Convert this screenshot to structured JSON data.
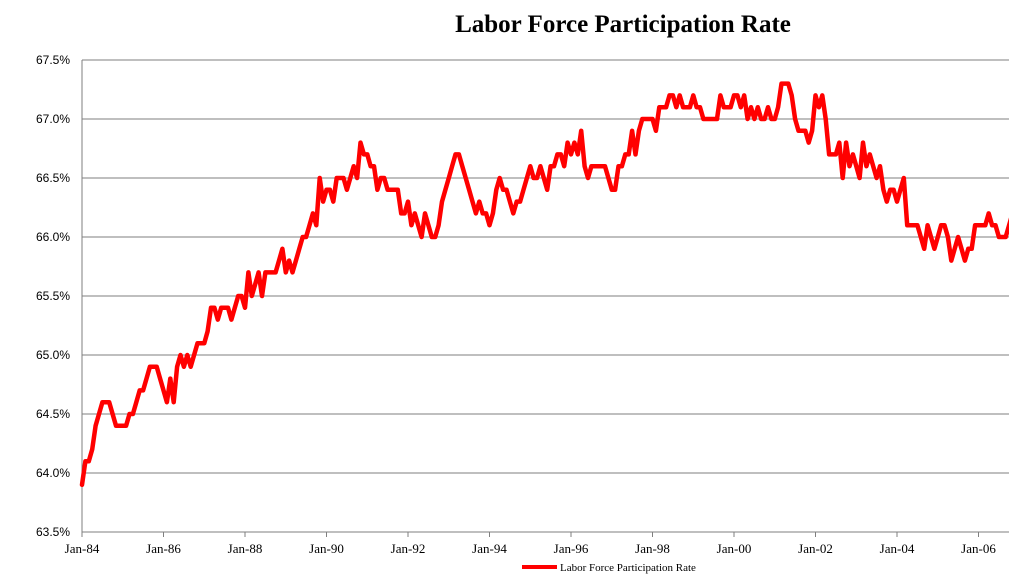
{
  "chart_data": {
    "type": "line",
    "title": "Labor Force Participation Rate",
    "xlabel": "",
    "ylabel": "",
    "ylim": [
      63.5,
      67.5
    ],
    "yticks": [
      "67.5%",
      "67.0%",
      "66.5%",
      "66.0%",
      "65.5%",
      "65.0%",
      "64.5%",
      "64.0%",
      "63.5%"
    ],
    "xticks": [
      "Jan-84",
      "Jan-86",
      "Jan-88",
      "Jan-90",
      "Jan-92",
      "Jan-94",
      "Jan-96",
      "Jan-98",
      "Jan-00",
      "Jan-02",
      "Jan-04",
      "Jan-06"
    ],
    "grid": true,
    "legend_position": "bottom",
    "series": [
      {
        "name": "Labor Force Participation Rate",
        "color": "#ff0000",
        "points": [
          [
            "1984-01",
            63.9
          ],
          [
            "1984-02",
            64.1
          ],
          [
            "1984-03",
            64.1
          ],
          [
            "1984-04",
            64.2
          ],
          [
            "1984-05",
            64.4
          ],
          [
            "1984-06",
            64.5
          ],
          [
            "1984-07",
            64.6
          ],
          [
            "1984-08",
            64.6
          ],
          [
            "1984-09",
            64.6
          ],
          [
            "1984-10",
            64.5
          ],
          [
            "1984-11",
            64.4
          ],
          [
            "1984-12",
            64.4
          ],
          [
            "1985-01",
            64.4
          ],
          [
            "1985-02",
            64.4
          ],
          [
            "1985-03",
            64.5
          ],
          [
            "1985-04",
            64.5
          ],
          [
            "1985-05",
            64.6
          ],
          [
            "1985-06",
            64.7
          ],
          [
            "1985-07",
            64.7
          ],
          [
            "1985-08",
            64.8
          ],
          [
            "1985-09",
            64.9
          ],
          [
            "1985-10",
            64.9
          ],
          [
            "1985-11",
            64.9
          ],
          [
            "1985-12",
            64.8
          ],
          [
            "1986-01",
            64.7
          ],
          [
            "1986-02",
            64.6
          ],
          [
            "1986-03",
            64.8
          ],
          [
            "1986-04",
            64.6
          ],
          [
            "1986-05",
            64.9
          ],
          [
            "1986-06",
            65.0
          ],
          [
            "1986-07",
            64.9
          ],
          [
            "1986-08",
            65.0
          ],
          [
            "1986-09",
            64.9
          ],
          [
            "1986-10",
            65.0
          ],
          [
            "1986-11",
            65.1
          ],
          [
            "1986-12",
            65.1
          ],
          [
            "1987-01",
            65.1
          ],
          [
            "1987-02",
            65.2
          ],
          [
            "1987-03",
            65.4
          ],
          [
            "1987-04",
            65.4
          ],
          [
            "1987-05",
            65.3
          ],
          [
            "1987-06",
            65.4
          ],
          [
            "1987-07",
            65.4
          ],
          [
            "1987-08",
            65.4
          ],
          [
            "1987-09",
            65.3
          ],
          [
            "1987-10",
            65.4
          ],
          [
            "1987-11",
            65.5
          ],
          [
            "1987-12",
            65.5
          ],
          [
            "1988-01",
            65.4
          ],
          [
            "1988-02",
            65.7
          ],
          [
            "1988-03",
            65.5
          ],
          [
            "1988-04",
            65.6
          ],
          [
            "1988-05",
            65.7
          ],
          [
            "1988-06",
            65.5
          ],
          [
            "1988-07",
            65.7
          ],
          [
            "1988-08",
            65.7
          ],
          [
            "1988-09",
            65.7
          ],
          [
            "1988-10",
            65.7
          ],
          [
            "1988-11",
            65.8
          ],
          [
            "1988-12",
            65.9
          ],
          [
            "1989-01",
            65.7
          ],
          [
            "1989-02",
            65.8
          ],
          [
            "1989-03",
            65.7
          ],
          [
            "1989-04",
            65.8
          ],
          [
            "1989-05",
            65.9
          ],
          [
            "1989-06",
            66.0
          ],
          [
            "1989-07",
            66.0
          ],
          [
            "1989-08",
            66.1
          ],
          [
            "1989-09",
            66.2
          ],
          [
            "1989-10",
            66.1
          ],
          [
            "1989-11",
            66.5
          ],
          [
            "1989-12",
            66.3
          ],
          [
            "1990-01",
            66.4
          ],
          [
            "1990-02",
            66.4
          ],
          [
            "1990-03",
            66.3
          ],
          [
            "1990-04",
            66.5
          ],
          [
            "1990-05",
            66.5
          ],
          [
            "1990-06",
            66.5
          ],
          [
            "1990-07",
            66.4
          ],
          [
            "1990-08",
            66.5
          ],
          [
            "1990-09",
            66.6
          ],
          [
            "1990-10",
            66.5
          ],
          [
            "1990-11",
            66.8
          ],
          [
            "1990-12",
            66.7
          ],
          [
            "1991-01",
            66.7
          ],
          [
            "1991-02",
            66.6
          ],
          [
            "1991-03",
            66.6
          ],
          [
            "1991-04",
            66.4
          ],
          [
            "1991-05",
            66.5
          ],
          [
            "1991-06",
            66.5
          ],
          [
            "1991-07",
            66.4
          ],
          [
            "1991-08",
            66.4
          ],
          [
            "1991-09",
            66.4
          ],
          [
            "1991-10",
            66.4
          ],
          [
            "1991-11",
            66.2
          ],
          [
            "1991-12",
            66.2
          ],
          [
            "1992-01",
            66.3
          ],
          [
            "1992-02",
            66.1
          ],
          [
            "1992-03",
            66.2
          ],
          [
            "1992-04",
            66.1
          ],
          [
            "1992-05",
            66.0
          ],
          [
            "1992-06",
            66.2
          ],
          [
            "1992-07",
            66.1
          ],
          [
            "1992-08",
            66.0
          ],
          [
            "1992-09",
            66.0
          ],
          [
            "1992-10",
            66.1
          ],
          [
            "1992-11",
            66.3
          ],
          [
            "1992-12",
            66.4
          ],
          [
            "1993-01",
            66.5
          ],
          [
            "1993-02",
            66.6
          ],
          [
            "1993-03",
            66.7
          ],
          [
            "1993-04",
            66.7
          ],
          [
            "1993-05",
            66.6
          ],
          [
            "1993-06",
            66.5
          ],
          [
            "1993-07",
            66.4
          ],
          [
            "1993-08",
            66.3
          ],
          [
            "1993-09",
            66.2
          ],
          [
            "1993-10",
            66.3
          ],
          [
            "1993-11",
            66.2
          ],
          [
            "1993-12",
            66.2
          ],
          [
            "1994-01",
            66.1
          ],
          [
            "1994-02",
            66.2
          ],
          [
            "1994-03",
            66.4
          ],
          [
            "1994-04",
            66.5
          ],
          [
            "1994-05",
            66.4
          ],
          [
            "1994-06",
            66.4
          ],
          [
            "1994-07",
            66.3
          ],
          [
            "1994-08",
            66.2
          ],
          [
            "1994-09",
            66.3
          ],
          [
            "1994-10",
            66.3
          ],
          [
            "1994-11",
            66.4
          ],
          [
            "1994-12",
            66.5
          ],
          [
            "1995-01",
            66.6
          ],
          [
            "1995-02",
            66.5
          ],
          [
            "1995-03",
            66.5
          ],
          [
            "1995-04",
            66.6
          ],
          [
            "1995-05",
            66.5
          ],
          [
            "1995-06",
            66.4
          ],
          [
            "1995-07",
            66.6
          ],
          [
            "1995-08",
            66.6
          ],
          [
            "1995-09",
            66.7
          ],
          [
            "1995-10",
            66.7
          ],
          [
            "1995-11",
            66.6
          ],
          [
            "1995-12",
            66.8
          ],
          [
            "1996-01",
            66.7
          ],
          [
            "1996-02",
            66.8
          ],
          [
            "1996-03",
            66.7
          ],
          [
            "1996-04",
            66.9
          ],
          [
            "1996-05",
            66.6
          ],
          [
            "1996-06",
            66.5
          ],
          [
            "1996-07",
            66.6
          ],
          [
            "1996-08",
            66.6
          ],
          [
            "1996-09",
            66.6
          ],
          [
            "1996-10",
            66.6
          ],
          [
            "1996-11",
            66.6
          ],
          [
            "1996-12",
            66.5
          ],
          [
            "1997-01",
            66.4
          ],
          [
            "1997-02",
            66.4
          ],
          [
            "1997-03",
            66.6
          ],
          [
            "1997-04",
            66.6
          ],
          [
            "1997-05",
            66.7
          ],
          [
            "1997-06",
            66.7
          ],
          [
            "1997-07",
            66.9
          ],
          [
            "1997-08",
            66.7
          ],
          [
            "1997-09",
            66.9
          ],
          [
            "1997-10",
            67.0
          ],
          [
            "1997-11",
            67.0
          ],
          [
            "1997-12",
            67.0
          ],
          [
            "1998-01",
            67.0
          ],
          [
            "1998-02",
            66.9
          ],
          [
            "1998-03",
            67.1
          ],
          [
            "1998-04",
            67.1
          ],
          [
            "1998-05",
            67.1
          ],
          [
            "1998-06",
            67.2
          ],
          [
            "1998-07",
            67.2
          ],
          [
            "1998-08",
            67.1
          ],
          [
            "1998-09",
            67.2
          ],
          [
            "1998-10",
            67.1
          ],
          [
            "1998-11",
            67.1
          ],
          [
            "1998-12",
            67.1
          ],
          [
            "1999-01",
            67.2
          ],
          [
            "1999-02",
            67.1
          ],
          [
            "1999-03",
            67.1
          ],
          [
            "1999-04",
            67.0
          ],
          [
            "1999-05",
            67.0
          ],
          [
            "1999-06",
            67.0
          ],
          [
            "1999-07",
            67.0
          ],
          [
            "1999-08",
            67.0
          ],
          [
            "1999-09",
            67.2
          ],
          [
            "1999-10",
            67.1
          ],
          [
            "1999-11",
            67.1
          ],
          [
            "1999-12",
            67.1
          ],
          [
            "2000-01",
            67.2
          ],
          [
            "2000-02",
            67.2
          ],
          [
            "2000-03",
            67.1
          ],
          [
            "2000-04",
            67.2
          ],
          [
            "2000-05",
            67.0
          ],
          [
            "2000-06",
            67.1
          ],
          [
            "2000-07",
            67.0
          ],
          [
            "2000-08",
            67.1
          ],
          [
            "2000-09",
            67.0
          ],
          [
            "2000-10",
            67.0
          ],
          [
            "2000-11",
            67.1
          ],
          [
            "2000-12",
            67.0
          ],
          [
            "2001-01",
            67.0
          ],
          [
            "2001-02",
            67.1
          ],
          [
            "2001-03",
            67.3
          ],
          [
            "2001-04",
            67.3
          ],
          [
            "2001-05",
            67.3
          ],
          [
            "2001-06",
            67.2
          ],
          [
            "2001-07",
            67.0
          ],
          [
            "2001-08",
            66.9
          ],
          [
            "2001-09",
            66.9
          ],
          [
            "2001-10",
            66.9
          ],
          [
            "2001-11",
            66.8
          ],
          [
            "2001-12",
            66.9
          ],
          [
            "2002-01",
            67.2
          ],
          [
            "2002-02",
            67.1
          ],
          [
            "2002-03",
            67.2
          ],
          [
            "2002-04",
            67.0
          ],
          [
            "2002-05",
            66.7
          ],
          [
            "2002-06",
            66.7
          ],
          [
            "2002-07",
            66.7
          ],
          [
            "2002-08",
            66.8
          ],
          [
            "2002-09",
            66.5
          ],
          [
            "2002-10",
            66.8
          ],
          [
            "2002-11",
            66.6
          ],
          [
            "2002-12",
            66.7
          ],
          [
            "2003-01",
            66.6
          ],
          [
            "2003-02",
            66.5
          ],
          [
            "2003-03",
            66.8
          ],
          [
            "2003-04",
            66.6
          ],
          [
            "2003-05",
            66.7
          ],
          [
            "2003-06",
            66.6
          ],
          [
            "2003-07",
            66.5
          ],
          [
            "2003-08",
            66.6
          ],
          [
            "2003-09",
            66.4
          ],
          [
            "2003-10",
            66.3
          ],
          [
            "2003-11",
            66.4
          ],
          [
            "2003-12",
            66.4
          ],
          [
            "2004-01",
            66.3
          ],
          [
            "2004-02",
            66.4
          ],
          [
            "2004-03",
            66.5
          ],
          [
            "2004-04",
            66.1
          ],
          [
            "2004-05",
            66.1
          ],
          [
            "2004-06",
            66.1
          ],
          [
            "2004-07",
            66.1
          ],
          [
            "2004-08",
            66.0
          ],
          [
            "2004-09",
            65.9
          ],
          [
            "2004-10",
            66.1
          ],
          [
            "2004-11",
            66.0
          ],
          [
            "2004-12",
            65.9
          ],
          [
            "2005-01",
            66.0
          ],
          [
            "2005-02",
            66.1
          ],
          [
            "2005-03",
            66.1
          ],
          [
            "2005-04",
            66.0
          ],
          [
            "2005-05",
            65.8
          ],
          [
            "2005-06",
            65.9
          ],
          [
            "2005-07",
            66.0
          ],
          [
            "2005-08",
            65.9
          ],
          [
            "2005-09",
            65.8
          ],
          [
            "2005-10",
            65.9
          ],
          [
            "2005-11",
            65.9
          ],
          [
            "2005-12",
            66.1
          ],
          [
            "2006-01",
            66.1
          ],
          [
            "2006-02",
            66.1
          ],
          [
            "2006-03",
            66.1
          ],
          [
            "2006-04",
            66.2
          ],
          [
            "2006-05",
            66.1
          ],
          [
            "2006-06",
            66.1
          ],
          [
            "2006-07",
            66.0
          ],
          [
            "2006-08",
            66.0
          ],
          [
            "2006-09",
            66.0
          ],
          [
            "2006-10",
            66.1
          ],
          [
            "2006-11",
            66.2
          ],
          [
            "2006-12",
            66.1
          ]
        ]
      }
    ]
  }
}
